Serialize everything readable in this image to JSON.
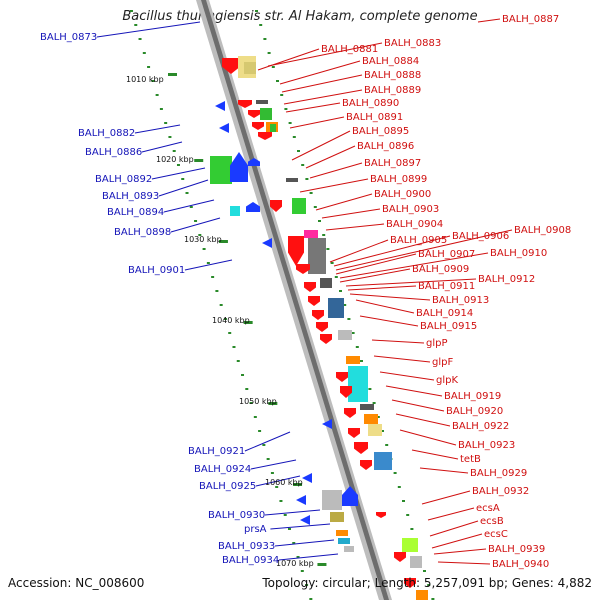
{
  "title": "Bacillus thuringiensis str. Al Hakam, complete genome",
  "footer": {
    "accession": "Accession: NC_008600",
    "topology": "Topology: circular; Length: 5,257,091 bp; Genes: 4,882"
  },
  "scale_labels": [
    "1010 kbp",
    "1020 kbp",
    "1030 kbp",
    "1040 kbp",
    "1050 kbp",
    "1060 kbp",
    "1070 kbp"
  ],
  "left_labels": [
    "BALH_0873",
    "BALH_0882",
    "BALH_0886",
    "BALH_0892",
    "BALH_0893",
    "BALH_0894",
    "BALH_0898",
    "BALH_0901",
    "BALH_0921",
    "BALH_0924",
    "BALH_0925",
    "BALH_0930",
    "prsA",
    "BALH_0933",
    "BALH_0934"
  ],
  "right_labels": [
    "BALH_0887",
    "BALH_0881",
    "BALH_0883",
    "BALH_0884",
    "BALH_0888",
    "BALH_0889",
    "BALH_0890",
    "BALH_0891",
    "BALH_0895",
    "BALH_0896",
    "BALH_0897",
    "BALH_0899",
    "BALH_0900",
    "BALH_0903",
    "BALH_0904",
    "BALH_0905",
    "BALH_0906",
    "BALH_0908",
    "BALH_0907",
    "BALH_0910",
    "BALH_0909",
    "BALH_0912",
    "BALH_0911",
    "BALH_0913",
    "BALH_0914",
    "BALH_0915",
    "glpP",
    "glpF",
    "glpK",
    "BALH_0919",
    "BALH_0920",
    "BALH_0922",
    "BALH_0923",
    "tetB",
    "BALH_0929",
    "BALH_0932",
    "ecsA",
    "ecsB",
    "ecsC",
    "BALH_0939",
    "BALH_0940"
  ],
  "colors": {
    "forward_label": "#d01010",
    "reverse_label": "#1515b8",
    "backbone": "#8a8a8a",
    "tick": "#2a8a2a"
  }
}
